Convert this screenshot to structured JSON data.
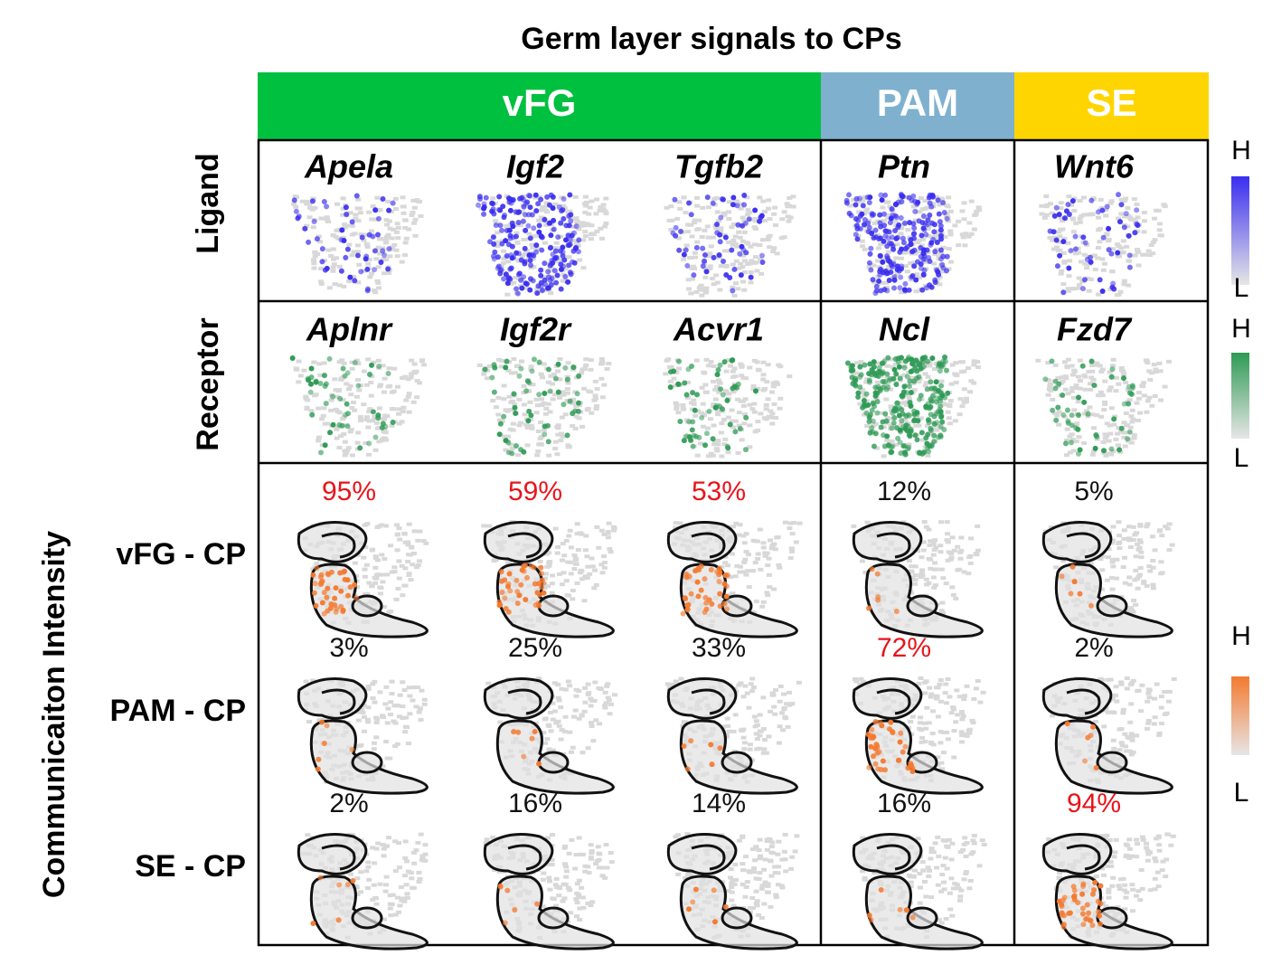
{
  "title": "Germ layer signals to CPs",
  "groups": [
    {
      "name": "vFG",
      "color": "#00c040"
    },
    {
      "name": "PAM",
      "color": "#7fb1cf"
    },
    {
      "name": "SE",
      "color": "#ffd500"
    }
  ],
  "ligand_label": "Ligand",
  "receptor_label": "Receptor",
  "communication_label": "Communicaiton Intensity",
  "ligands": [
    "Apela",
    "Igf2",
    "Tgfb2",
    "Ptn",
    "Wnt6"
  ],
  "receptors": [
    "Aplnr",
    "Igf2r",
    "Acvr1",
    "Ncl",
    "Fzd7"
  ],
  "rows": [
    {
      "label": "vFG - CP",
      "values": [
        "95%",
        "59%",
        "53%",
        "12%",
        "5%"
      ],
      "highlight": [
        true,
        true,
        true,
        false,
        false
      ]
    },
    {
      "label": "PAM - CP",
      "values": [
        "3%",
        "25%",
        "33%",
        "72%",
        "2%"
      ],
      "highlight": [
        false,
        false,
        false,
        true,
        false
      ]
    },
    {
      "label": "SE - CP",
      "values": [
        "2%",
        "16%",
        "14%",
        "16%",
        "94%"
      ],
      "highlight": [
        false,
        false,
        false,
        false,
        true
      ]
    }
  ],
  "highlight_color": "#e8141a",
  "legends": [
    {
      "high": "H",
      "low": "L",
      "color": "#3a2ef0"
    },
    {
      "high": "H",
      "low": "L",
      "color": "#2e9a55"
    },
    {
      "high": "H",
      "low": "L",
      "color": "#f47a30"
    }
  ]
}
